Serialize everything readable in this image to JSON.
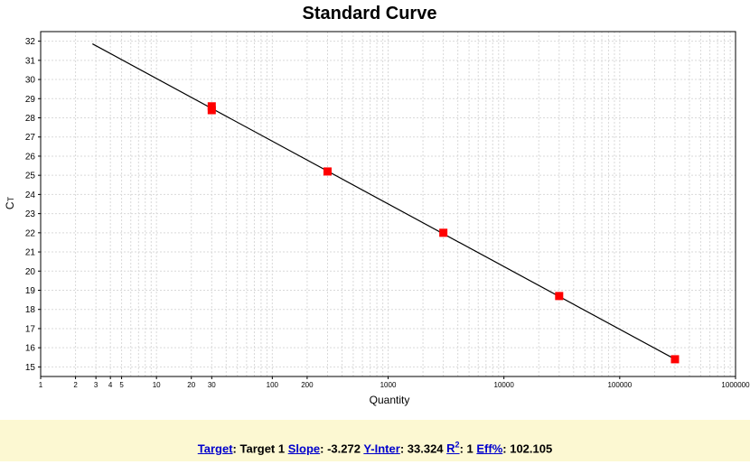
{
  "chart_data": {
    "type": "scatter",
    "title": "Standard Curve",
    "xlabel": "Quantity",
    "ylabel_main": "C",
    "ylabel_sub": "T",
    "x_scale": "log",
    "xlim": [
      1,
      1000000
    ],
    "ylim": [
      14.5,
      32.5
    ],
    "grid": true,
    "x_tick_labels": [
      {
        "value": 1,
        "label": "1"
      },
      {
        "value": 2,
        "label": "2"
      },
      {
        "value": 3,
        "label": "3"
      },
      {
        "value": 4,
        "label": "4"
      },
      {
        "value": 5,
        "label": "5"
      },
      {
        "value": 10,
        "label": "10"
      },
      {
        "value": 20,
        "label": "20"
      },
      {
        "value": 30,
        "label": "30"
      },
      {
        "value": 100,
        "label": "100"
      },
      {
        "value": 200,
        "label": "200"
      },
      {
        "value": 1000,
        "label": "1000"
      },
      {
        "value": 10000,
        "label": "10000"
      },
      {
        "value": 100000,
        "label": "100000"
      },
      {
        "value": 1000000,
        "label": "1000000"
      }
    ],
    "y_ticks": [
      15,
      16,
      17,
      18,
      19,
      20,
      21,
      22,
      23,
      24,
      25,
      26,
      27,
      28,
      29,
      30,
      31,
      32
    ],
    "points": [
      {
        "x": 30,
        "y": 28.6
      },
      {
        "x": 30,
        "y": 28.4
      },
      {
        "x": 300,
        "y": 25.2
      },
      {
        "x": 3000,
        "y": 22.0
      },
      {
        "x": 30000,
        "y": 18.7
      },
      {
        "x": 300000,
        "y": 15.4
      }
    ],
    "fit_line": {
      "slope": -3.272,
      "intercept": 33.324,
      "x_start": 2.8,
      "x_end": 300000
    },
    "point_color": "#ff0000",
    "line_color": "#000000"
  },
  "footer": {
    "target_label": "Target",
    "target_value": "Target 1",
    "slope_label": "Slope",
    "slope_value": "-3.272",
    "yinter_label": "Y-Inter",
    "yinter_value": "33.324",
    "r2_label": "R",
    "r2_sup": "2",
    "r2_value": "1",
    "eff_label": "Eff%",
    "eff_value": "102.105"
  },
  "colors": {
    "footer_bg": "#fcf8d2",
    "link": "#0000cc",
    "grid": "#d9d9d9"
  }
}
